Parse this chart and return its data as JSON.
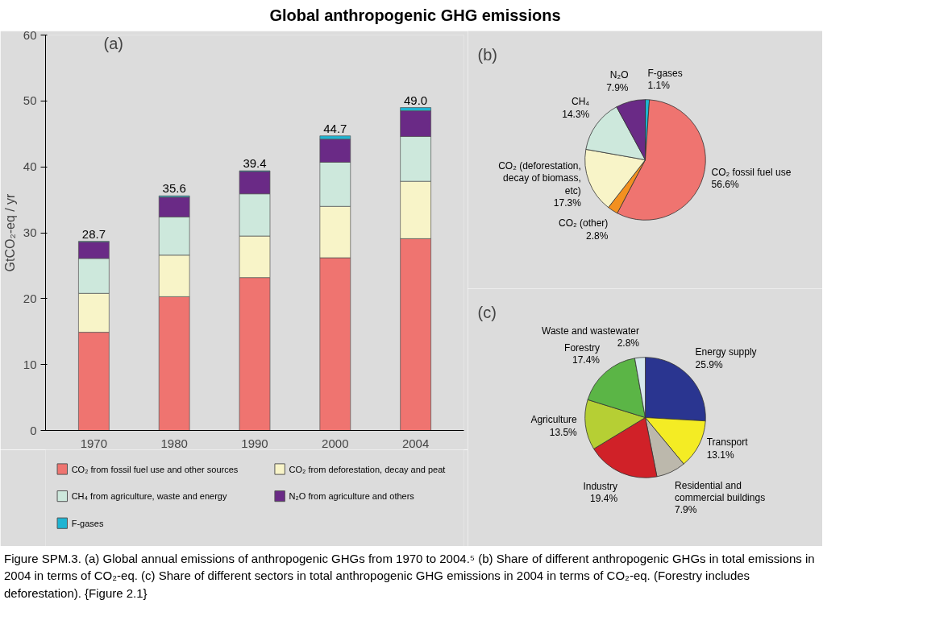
{
  "chart_data": [
    {
      "type": "bar",
      "title": "Global anthropogenic GHG emissions",
      "subtitle": "(a)",
      "ylabel": "GtCO₂-eq / yr",
      "categories": [
        "1970",
        "1980",
        "1990",
        "2000",
        "2004"
      ],
      "stacked": true,
      "legend": "bottom",
      "ylim": [
        0,
        60
      ],
      "yticks": [
        0,
        10,
        20,
        30,
        40,
        50,
        60
      ],
      "series": [
        {
          "name": "CO₂ from fossil fuel use and other sources",
          "color": "#ef7470",
          "values": [
            14.9,
            20.3,
            23.2,
            26.2,
            29.1
          ]
        },
        {
          "name": "CO₂ from deforestation, decay and peat",
          "color": "#f8f4c8",
          "values": [
            5.9,
            6.3,
            6.3,
            7.8,
            8.7
          ]
        },
        {
          "name": "CH₄ from agriculture, waste and energy",
          "color": "#cde8dc",
          "values": [
            5.3,
            5.8,
            6.4,
            6.7,
            6.8
          ]
        },
        {
          "name": "N₂O from agriculture and others",
          "color": "#6a2a86",
          "values": [
            2.5,
            3.0,
            3.4,
            3.5,
            3.9
          ]
        },
        {
          "name": "F-gases",
          "color": "#1eb4d2",
          "values": [
            0.1,
            0.2,
            0.1,
            0.5,
            0.5
          ]
        }
      ],
      "totals": [
        "28.7",
        "35.6",
        "39.4",
        "44.7",
        "49.0"
      ]
    },
    {
      "type": "pie",
      "title": "(b)",
      "categories": [
        "F-gases",
        "CO₂ fossil fuel use",
        "CO₂ (other)",
        "CO₂ (deforestation, decay of biomass, etc)",
        "CH₄",
        "N₂O"
      ],
      "values": [
        1.1,
        56.6,
        2.8,
        17.3,
        14.3,
        7.9
      ],
      "value_labels": [
        "1.1%",
        "56.6%",
        "2.8%",
        "17.3%",
        "14.3%",
        "7.9%"
      ],
      "colors": [
        "#1eb4d2",
        "#ef7470",
        "#f39020",
        "#f8f4c8",
        "#cde8dc",
        "#6a2a86"
      ]
    },
    {
      "type": "pie",
      "title": "(c)",
      "categories": [
        "Energy supply",
        "Transport",
        "Residential and commercial buildings",
        "Industry",
        "Agriculture",
        "Forestry",
        "Waste and wastewater"
      ],
      "values": [
        25.9,
        13.1,
        7.9,
        19.4,
        13.5,
        17.4,
        2.8
      ],
      "value_labels": [
        "25.9%",
        "13.1%",
        "7.9%",
        "19.4%",
        "13.5%",
        "17.4%",
        "2.8%"
      ],
      "colors": [
        "#2a3590",
        "#f4ec24",
        "#bcb8ac",
        "#d02128",
        "#b6cf34",
        "#5bb546",
        "#d6e8ec"
      ],
      "annotations": [
        "Figure SPM.3. (a) Global annual emissions of anthropogenic GHGs from 1970 to 2004.⁵ (b) Share of different anthropogenic GHGs in total emissions in 2004 in terms of CO₂-eq. (c) Share of different sectors in total anthropogenic GHG emissions in 2004 in terms of CO₂-eq. (Forestry includes deforestation). {Figure 2.1}"
      ]
    }
  ]
}
